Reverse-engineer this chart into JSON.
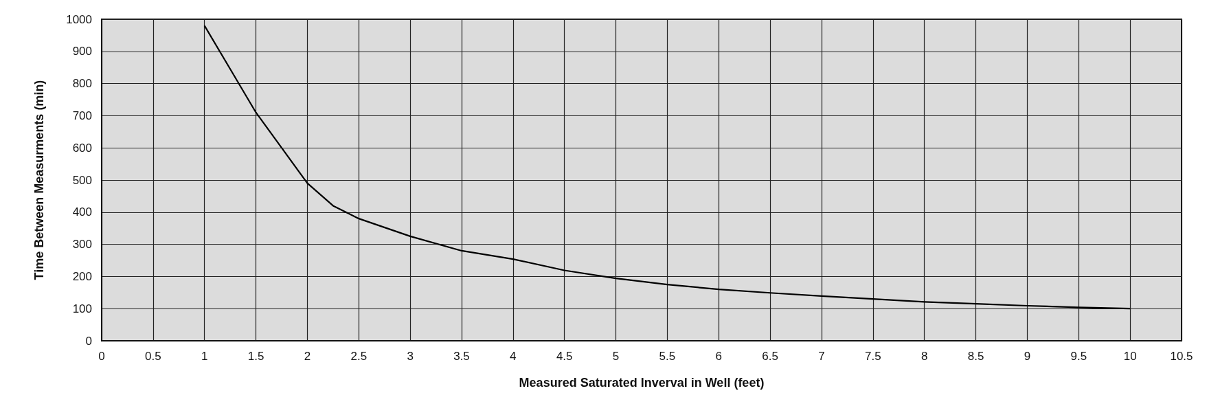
{
  "chart_data": {
    "type": "line",
    "xlabel": "Measured Saturated Inverval in Well (feet)",
    "ylabel": "Time Between Measurments (min)",
    "x": [
      1,
      1.25,
      1.5,
      1.75,
      2,
      2.25,
      2.5,
      3,
      3.5,
      4,
      4.5,
      5,
      5.5,
      6,
      6.5,
      7,
      7.5,
      8,
      8.5,
      9,
      9.5,
      10
    ],
    "series": [
      {
        "color": "#000000",
        "values": [
          980,
          845,
          710,
          600,
          490,
          420,
          380,
          325,
          280,
          254,
          219,
          194,
          175,
          160,
          149,
          139,
          130,
          121,
          115,
          109,
          104,
          100
        ]
      }
    ],
    "xlim": [
      0,
      10.5
    ],
    "xticks": [
      0,
      0.5,
      1,
      1.5,
      2,
      2.5,
      3,
      3.5,
      4,
      4.5,
      5,
      5.5,
      6,
      6.5,
      7,
      7.5,
      8,
      8.5,
      9,
      9.5,
      10,
      10.5
    ],
    "ylim": [
      0,
      1000
    ],
    "yticks": [
      0,
      100,
      200,
      300,
      400,
      500,
      600,
      700,
      800,
      900,
      1000
    ],
    "grid": true,
    "marker": "none",
    "line_style": "solid"
  }
}
